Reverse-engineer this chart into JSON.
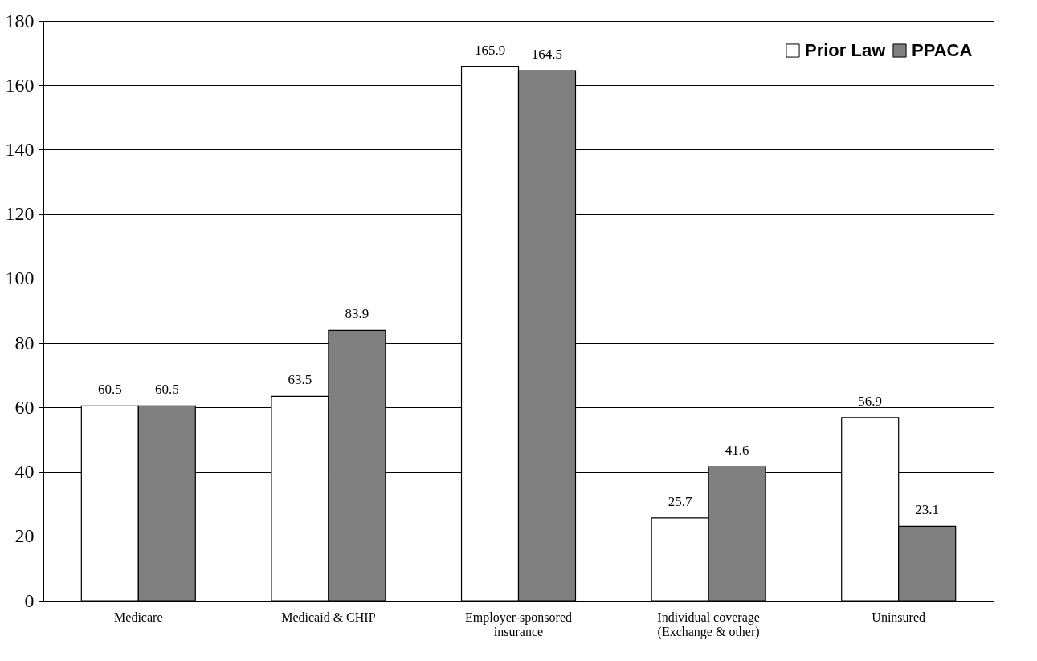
{
  "chart_data": {
    "type": "bar",
    "categories": [
      "Medicare",
      "Medicaid & CHIP",
      "Employer-sponsored insurance",
      "Individual coverage (Exchange & other)",
      "Uninsured"
    ],
    "series": [
      {
        "name": "Prior Law",
        "color": "#ffffff",
        "values": [
          60.5,
          63.5,
          165.9,
          25.7,
          56.9
        ]
      },
      {
        "name": "PPACA",
        "color": "#808080",
        "values": [
          60.5,
          83.9,
          164.5,
          41.6,
          23.1
        ]
      }
    ],
    "ylim": [
      0,
      180
    ],
    "yticks": [
      0,
      20,
      40,
      60,
      80,
      100,
      120,
      140,
      160,
      180
    ],
    "grid": "y",
    "legend": "top right",
    "data_labels": true
  }
}
